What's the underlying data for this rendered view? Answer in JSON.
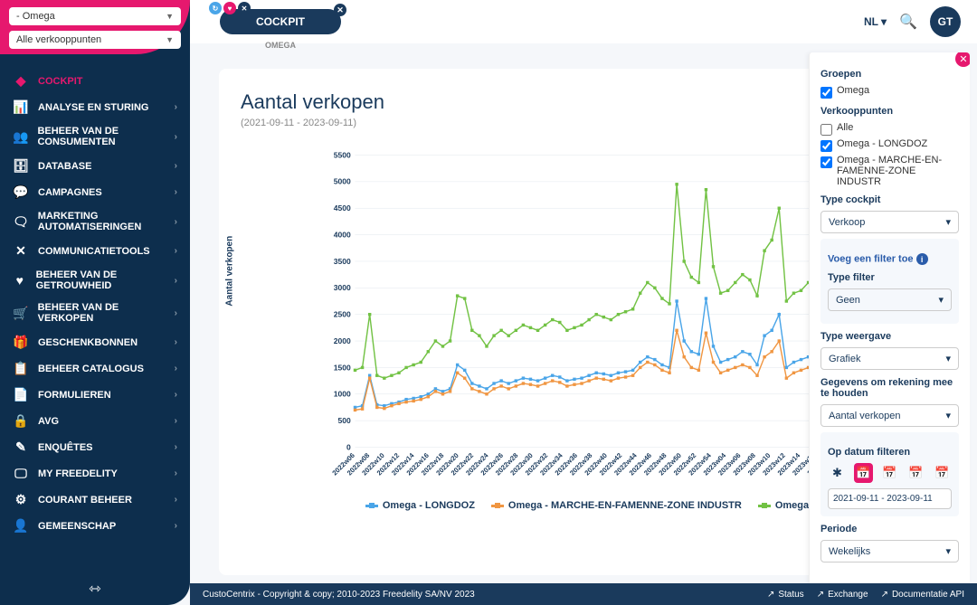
{
  "sidebar": {
    "brand_select": "- Omega",
    "stores_select": "Alle verkooppunten",
    "nav": [
      {
        "icon": "◆",
        "label": "COCKPIT",
        "active": true
      },
      {
        "icon": "📊",
        "label": "ANALYSE EN STURING"
      },
      {
        "icon": "👥",
        "label": "BEHEER VAN DE CONSUMENTEN"
      },
      {
        "icon": "🗄",
        "label": "DATABASE"
      },
      {
        "icon": "💬",
        "label": "CAMPAGNES"
      },
      {
        "icon": "🗨",
        "label": "MARKETING AUTOMATISERINGEN"
      },
      {
        "icon": "✕",
        "label": "COMMUNICATIETOOLS"
      },
      {
        "icon": "♥",
        "label": "BEHEER VAN DE GETROUWHEID"
      },
      {
        "icon": "🛒",
        "label": "BEHEER VAN DE VERKOPEN"
      },
      {
        "icon": "🎁",
        "label": "GESCHENKBONNEN"
      },
      {
        "icon": "📋",
        "label": "BEHEER CATALOGUS"
      },
      {
        "icon": "📄",
        "label": "FORMULIEREN"
      },
      {
        "icon": "🔒",
        "label": "AVG"
      },
      {
        "icon": "✎",
        "label": "ENQUÊTES"
      },
      {
        "icon": "🖵",
        "label": "MY FREEDELITY"
      },
      {
        "icon": "⚙",
        "label": "COURANT BEHEER"
      },
      {
        "icon": "👤",
        "label": "GEMEENSCHAP"
      }
    ]
  },
  "topbar": {
    "tab": "COCKPIT",
    "tab_sub": "OMEGA",
    "lang": "NL",
    "avatar": "GT"
  },
  "card": {
    "title": "Aantal verkopen",
    "subtitle": "(2021-09-11 - 2023-09-11)"
  },
  "chart": {
    "y_label": "Aantal verkopen",
    "y_ticks": [
      0,
      500,
      1000,
      1500,
      2000,
      2500,
      3000,
      3500,
      4000,
      4500,
      5000,
      5500
    ],
    "x_labels": [
      "2022w06",
      "2022w08",
      "2022w10",
      "2022w12",
      "2022w14",
      "2022w16",
      "2022w18",
      "2022w20",
      "2022w22",
      "2022w24",
      "2022w26",
      "2022w28",
      "2022w30",
      "2022w32",
      "2022w34",
      "2022w36",
      "2022w38",
      "2022w40",
      "2022w42",
      "2022w44",
      "2022w46",
      "2022w48",
      "2022w50",
      "2022w52",
      "2022w54",
      "2023w04",
      "2023w06",
      "2023w08",
      "2023w10",
      "2023w12",
      "2023w14",
      "2023w16",
      "2023w18",
      "2023"
    ],
    "colors": {
      "series1": "#4aa5e8",
      "series2": "#f09642",
      "series3": "#72c244",
      "grid": "#e0e6ed",
      "text": "#1a3a5c"
    },
    "legend": [
      {
        "label": "Omega - LONGDOZ",
        "color": "#4aa5e8"
      },
      {
        "label": "Omega - MARCHE-EN-FAMENNE-ZONE INDUSTR",
        "color": "#f09642"
      },
      {
        "label": "Omega",
        "color": "#72c244"
      }
    ],
    "s1": [
      750,
      780,
      1350,
      800,
      780,
      820,
      850,
      900,
      920,
      950,
      1000,
      1100,
      1050,
      1100,
      1550,
      1450,
      1200,
      1150,
      1100,
      1200,
      1250,
      1200,
      1250,
      1300,
      1280,
      1250,
      1300,
      1350,
      1320,
      1250,
      1280,
      1300,
      1350,
      1400,
      1380,
      1350,
      1400,
      1420,
      1450,
      1600,
      1700,
      1650,
      1550,
      1500,
      2750,
      2000,
      1800,
      1750,
      2800,
      1900,
      1600,
      1650,
      1700,
      1800,
      1750,
      1550,
      2100,
      2200,
      2500,
      1500,
      1600,
      1650,
      1700,
      1750,
      1600,
      1800,
      1850,
      1900
    ],
    "s2": [
      700,
      720,
      1300,
      750,
      730,
      780,
      820,
      850,
      870,
      900,
      950,
      1050,
      1000,
      1050,
      1400,
      1300,
      1100,
      1050,
      1000,
      1100,
      1150,
      1100,
      1150,
      1200,
      1180,
      1150,
      1200,
      1250,
      1220,
      1150,
      1180,
      1200,
      1250,
      1300,
      1280,
      1250,
      1300,
      1320,
      1350,
      1500,
      1600,
      1550,
      1450,
      1400,
      2200,
      1700,
      1500,
      1450,
      2150,
      1600,
      1400,
      1450,
      1500,
      1550,
      1500,
      1350,
      1700,
      1800,
      2000,
      1300,
      1400,
      1450,
      1500,
      1550,
      900,
      1550,
      1600,
      1650
    ],
    "s3": [
      1450,
      1500,
      2500,
      1350,
      1300,
      1350,
      1400,
      1500,
      1550,
      1600,
      1800,
      2000,
      1900,
      2000,
      2850,
      2800,
      2200,
      2100,
      1900,
      2100,
      2200,
      2100,
      2200,
      2300,
      2250,
      2200,
      2300,
      2400,
      2350,
      2200,
      2250,
      2300,
      2400,
      2500,
      2450,
      2400,
      2500,
      2550,
      2600,
      2900,
      3100,
      3000,
      2800,
      2700,
      4950,
      3500,
      3200,
      3100,
      4850,
      3400,
      2900,
      2950,
      3100,
      3250,
      3150,
      2850,
      3700,
      3900,
      4500,
      2750,
      2900,
      2950,
      3100,
      3250,
      2100,
      3200,
      3250,
      3300
    ]
  },
  "panel": {
    "groups_title": "Groepen",
    "group1": "Omega",
    "stores_title": "Verkooppunten",
    "store_all": "Alle",
    "store1": "Omega - LONGDOZ",
    "store2": "Omega - MARCHE-EN-FAMENNE-ZONE INDUSTR",
    "type_title": "Type cockpit",
    "type_value": "Verkoop",
    "filter_title": "Voeg een filter toe",
    "filter_type_title": "Type filter",
    "filter_type_value": "Geen",
    "display_title": "Type weergave",
    "display_value": "Grafiek",
    "data_title": "Gegevens om rekening mee te houden",
    "data_value": "Aantal verkopen",
    "date_title": "Op datum filteren",
    "date_value": "2021-09-11 - 2023-09-11",
    "period_title": "Periode",
    "period_value": "Wekelijks"
  },
  "footer": {
    "copyright": "CustoCentrix - Copyright & copy; 2010-2023 Freedelity SA/NV 2023",
    "status": "Status",
    "exchange": "Exchange",
    "docs": "Documentatie API"
  }
}
